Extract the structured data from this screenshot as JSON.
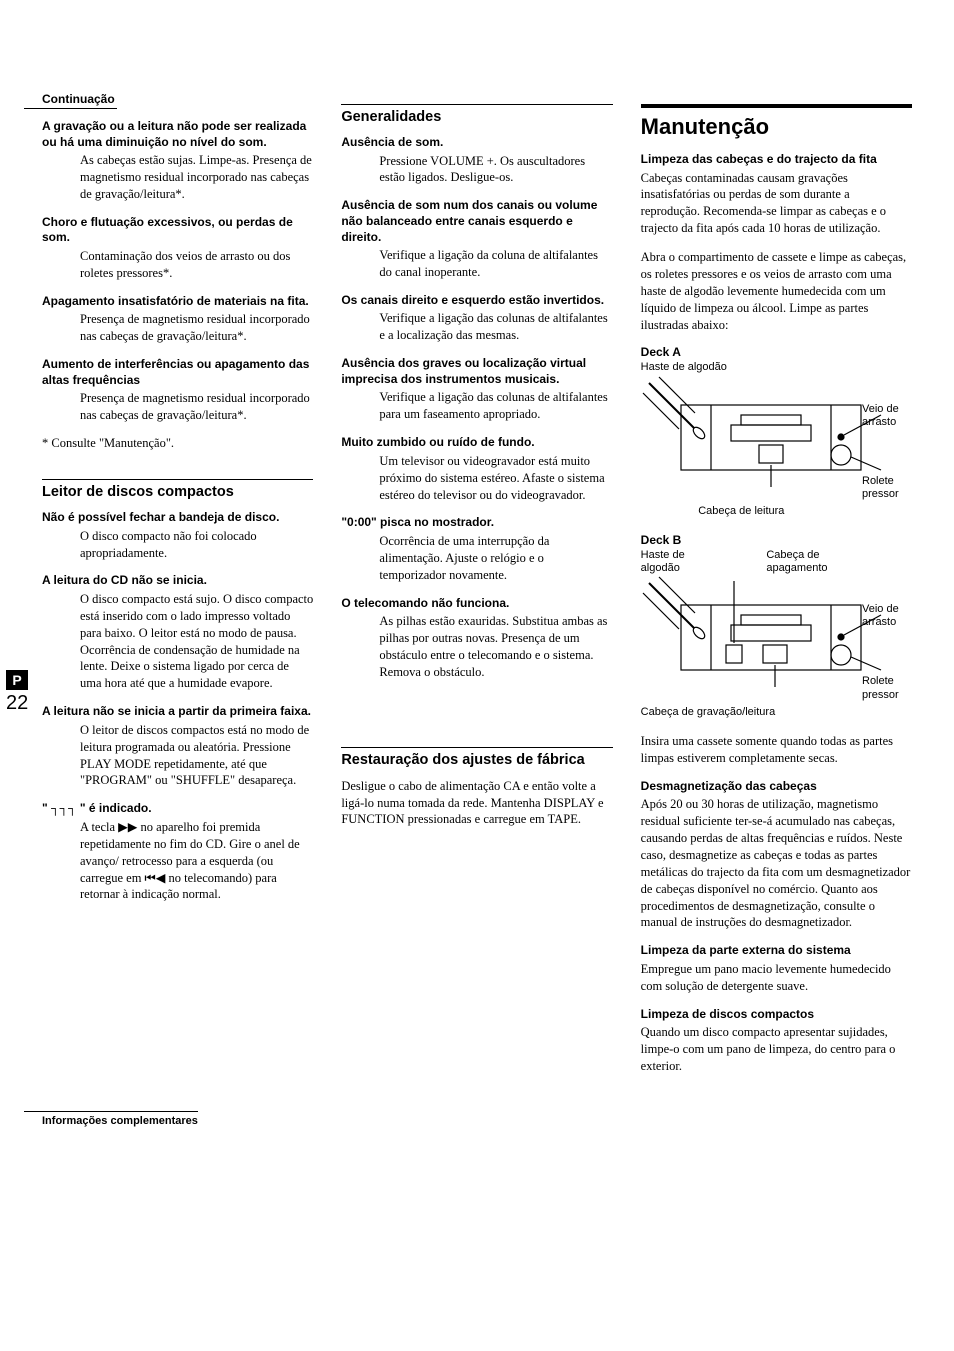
{
  "sideTab": {
    "letter": "P",
    "pageNum": "22"
  },
  "footer": "Informações complementares",
  "col1": {
    "cont": "Continuação",
    "items1": [
      {
        "t": "A gravação ou a leitura não pode ser realizada ou há uma diminuição no nível do som.",
        "b": "As cabeças estão sujas. Limpe-as. Presença de magnetismo residual incorporado nas cabeças de gravação/leitura*."
      },
      {
        "t": "Choro e flutuação excessivos, ou perdas de som.",
        "b": "Contaminação dos veios de arrasto ou dos roletes pressores*."
      },
      {
        "t": "Apagamento insatisfatório de materiais na fita.",
        "b": "Presença de magnetismo residual incorporado nas cabeças de gravação/leitura*."
      },
      {
        "t": "Aumento de interferências ou apagamento das altas frequências",
        "b": "Presença de magnetismo residual incorporado nas cabeças de gravação/leitura*."
      }
    ],
    "footnote": "* Consulte \"Manutenção\".",
    "head2": "Leitor de discos compactos",
    "items2": [
      {
        "t": "Não é possível fechar a bandeja de disco.",
        "b": "O disco compacto não foi colocado apropriadamente."
      },
      {
        "t": "A leitura do CD não se inicia.",
        "b": "O disco compacto está sujo. O disco compacto está inserido com o lado impresso voltado para baixo. O leitor está no modo de pausa. Ocorrência de condensação de humidade na lente. Deixe o sistema ligado por cerca de uma hora até que a humidade evapore."
      },
      {
        "t": "A leitura não se inicia a partir da primeira faixa.",
        "b": "O leitor de discos compactos está no modo de leitura programada ou aleatória. Pressione PLAY MODE repetidamente, até que \"PROGRAM\" ou \"SHUFFLE\" desapareça."
      },
      {
        "t": "\" ┐┐┐ \" é indicado.",
        "b": "A tecla ▶▶ no aparelho foi premida repetidamente no fim do CD. Gire o anel de avanço/ retrocesso para a esquerda (ou carregue em ⏮◀ no telecomando) para retornar à indicação normal."
      }
    ]
  },
  "col2": {
    "head1": "Generalidades",
    "items1": [
      {
        "t": "Ausência de som.",
        "b": "Pressione VOLUME +. Os auscultadores estão ligados. Desligue-os."
      },
      {
        "t": "Ausência de som num dos canais ou volume não balanceado entre canais esquerdo e direito.",
        "b": "Verifique a ligação da coluna de altifalantes do canal inoperante."
      },
      {
        "t": "Os canais direito e esquerdo estão invertidos.",
        "b": "Verifique a ligação das colunas de altifalantes e a localização das mesmas."
      },
      {
        "t": "Ausência dos graves ou localização virtual imprecisa dos instrumentos musicais.",
        "b": "Verifique a ligação das colunas de altifalantes para um faseamento apropriado."
      },
      {
        "t": "Muito zumbido ou ruído de fundo.",
        "b": "Um televisor ou videogravador está muito próximo do sistema estéreo. Afaste o sistema estéreo do televisor ou do videogravador."
      },
      {
        "t": "\"0:00\" pisca no mostrador.",
        "b": "Ocorrência de uma interrupção da alimentação. Ajuste o relógio e o temporizador novamente."
      },
      {
        "t": "O telecomando não funciona.",
        "b": "As pilhas estão exauridas. Substitua ambas as pilhas por outras novas. Presença de um obstáculo entre o telecomando e o sistema. Remova o obstáculo."
      }
    ],
    "head2": "Restauração dos ajustes de fábrica",
    "para2": "Desligue o cabo de alimentação CA e então volte a ligá-lo numa tomada da rede. Mantenha DISPLAY e FUNCTION pressionadas e carregue em TAPE."
  },
  "col3": {
    "head1": "Manutenção",
    "items1": [
      {
        "t": "Limpeza das cabeças e do trajecto da fita",
        "b": "Cabeças contaminadas causam gravações insatisfatórias ou perdas de som durante a reprodução. Recomenda-se limpar as cabeças e o trajecto da fita após cada 10 horas de utilização."
      }
    ],
    "para1": "Abra o compartimento de cassete e limpe as cabeças, os roletes pressores e os veios de arrasto com uma haste de algodão levemente humedecida com um líquido de limpeza ou álcool. Limpe as partes ilustradas abaixo:",
    "deckA": {
      "label": "Deck A",
      "swab": "Haste de algodão",
      "veio": "Veio de arrasto",
      "rolete": "Rolete pressor",
      "head": "Cabeça de leitura"
    },
    "deckB": {
      "label": "Deck B",
      "swab": "Haste de algodão",
      "erase": "Cabeça de apagamento",
      "veio": "Veio de arrasto",
      "rolete": "Rolete pressor",
      "head": "Cabeça de gravação/leitura"
    },
    "para2": "Insira uma cassete somente quando todas as partes limpas estiverem completamente secas.",
    "items2": [
      {
        "t": "Desmagnetização das cabeças",
        "b": "Após 20 ou 30 horas de utilização, magnetismo residual suficiente ter-se-á acumulado nas cabeças, causando perdas de altas frequências e ruídos. Neste caso, desmagnetize as cabeças e todas as partes metálicas do trajecto da fita com um desmagnetizador de cabeças disponível no comércio. Quanto aos procedimentos de desmagnetização, consulte o manual de instruções do desmagnetizador."
      },
      {
        "t": "Limpeza da parte externa do sistema",
        "b": "Empregue um pano macio levemente humedecido com solução de detergente suave."
      },
      {
        "t": "Limpeza de discos compactos",
        "b": "Quando um disco compacto apresentar sujidades, limpe-o com um pano de limpeza, do centro para o exterior."
      }
    ]
  }
}
